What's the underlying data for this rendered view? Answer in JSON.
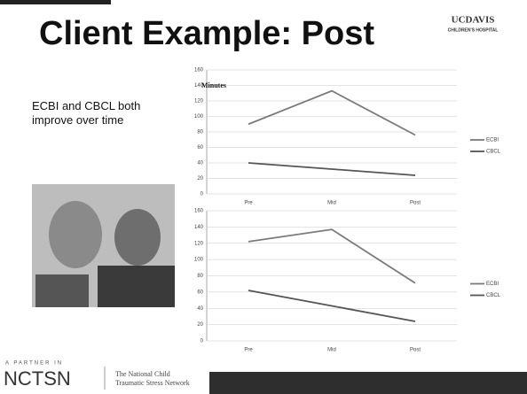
{
  "slide": {
    "title": "Client Example: Post",
    "logo_top": "UCDAVIS",
    "logo_bottom": "CHILDREN'S HOSPITAL",
    "body": "ECBI and CBCL both improve over time",
    "partner": "A PARTNER IN",
    "org": "NCTSN",
    "org_line1": "The National Child",
    "org_line2": "Traumatic Stress Network"
  },
  "chart_data": [
    {
      "type": "line",
      "title": "Minutes",
      "categories": [
        "Pre",
        "Mid",
        "Post"
      ],
      "series": [
        {
          "name": "ECBI",
          "color": "#7a7a7a",
          "values": [
            90,
            133,
            76
          ]
        },
        {
          "name": "CBCL",
          "color": "#555555",
          "values": [
            40,
            32,
            24
          ]
        }
      ],
      "ylim": [
        0,
        160
      ],
      "yticks": [
        0,
        20,
        40,
        60,
        80,
        100,
        120,
        140,
        160
      ],
      "grid": true,
      "legend": "right"
    },
    {
      "type": "line",
      "categories": [
        "Pre",
        "Mid",
        "Post"
      ],
      "series": [
        {
          "name": "ECBI",
          "color": "#7a7a7a",
          "values": [
            122,
            137,
            71
          ]
        },
        {
          "name": "CBCL",
          "color": "#555555",
          "values": [
            62,
            43,
            24
          ]
        }
      ],
      "ylim": [
        0,
        160
      ],
      "yticks": [
        0,
        20,
        40,
        60,
        80,
        100,
        120,
        140,
        160
      ],
      "grid": true,
      "legend": "right"
    }
  ]
}
